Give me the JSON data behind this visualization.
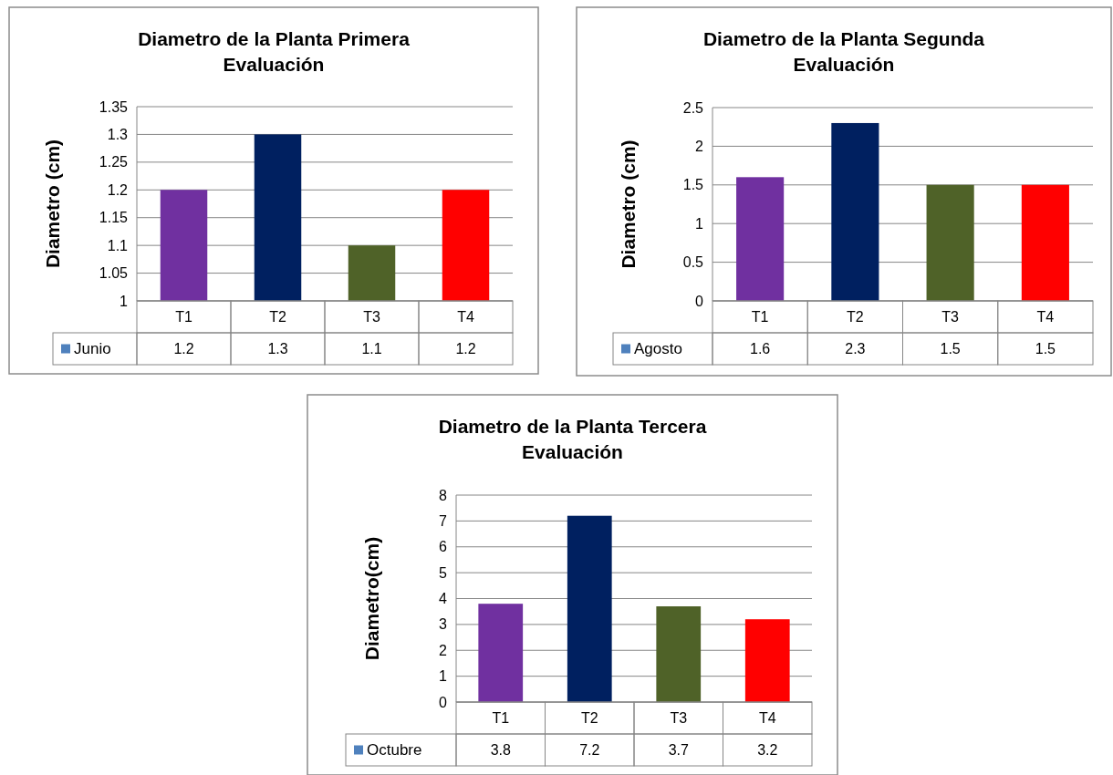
{
  "chart_data": [
    {
      "type": "bar",
      "title": "Diametro de la Planta Primera Evaluación",
      "ylabel": "Diametro  (cm)",
      "categories": [
        "T1",
        "T2",
        "T3",
        "T4"
      ],
      "series": [
        {
          "name": "Junio",
          "color": "#4f81bd",
          "colors": [
            "#7030a0",
            "#002060",
            "#4f6228",
            "#ff0000"
          ],
          "values": [
            1.2,
            1.3,
            1.1,
            1.2
          ]
        }
      ],
      "ylim": [
        1,
        1.35
      ],
      "yticks": [
        1,
        1.05,
        1.1,
        1.15,
        1.2,
        1.25,
        1.3,
        1.35
      ],
      "grid": "y",
      "data_labels": true,
      "legend": "bottom left"
    },
    {
      "type": "bar",
      "title": "Diametro de la Planta Segunda Evaluación",
      "ylabel": "Diametro  (cm)",
      "categories": [
        "T1",
        "T2",
        "T3",
        "T4"
      ],
      "series": [
        {
          "name": "Agosto",
          "color": "#4f81bd",
          "colors": [
            "#7030a0",
            "#002060",
            "#4f6228",
            "#ff0000"
          ],
          "values": [
            1.6,
            2.3,
            1.5,
            1.5
          ]
        }
      ],
      "ylim": [
        0,
        2.5
      ],
      "yticks": [
        0,
        0.5,
        1,
        1.5,
        2,
        2.5
      ],
      "grid": "y",
      "data_labels": true,
      "legend": "bottom left"
    },
    {
      "type": "bar",
      "title": "Diametro de la Planta Tercera Evaluación",
      "ylabel": "Diametro(cm)",
      "categories": [
        "T1",
        "T2",
        "T3",
        "T4"
      ],
      "series": [
        {
          "name": "Octubre",
          "color": "#4f81bd",
          "colors": [
            "#7030a0",
            "#002060",
            "#4f6228",
            "#ff0000"
          ],
          "values": [
            3.8,
            7.2,
            3.7,
            3.2
          ]
        }
      ],
      "ylim": [
        0,
        8
      ],
      "yticks": [
        0,
        1,
        2,
        3,
        4,
        5,
        6,
        7,
        8
      ],
      "grid": "y",
      "data_labels": true,
      "legend": "bottom left"
    }
  ]
}
